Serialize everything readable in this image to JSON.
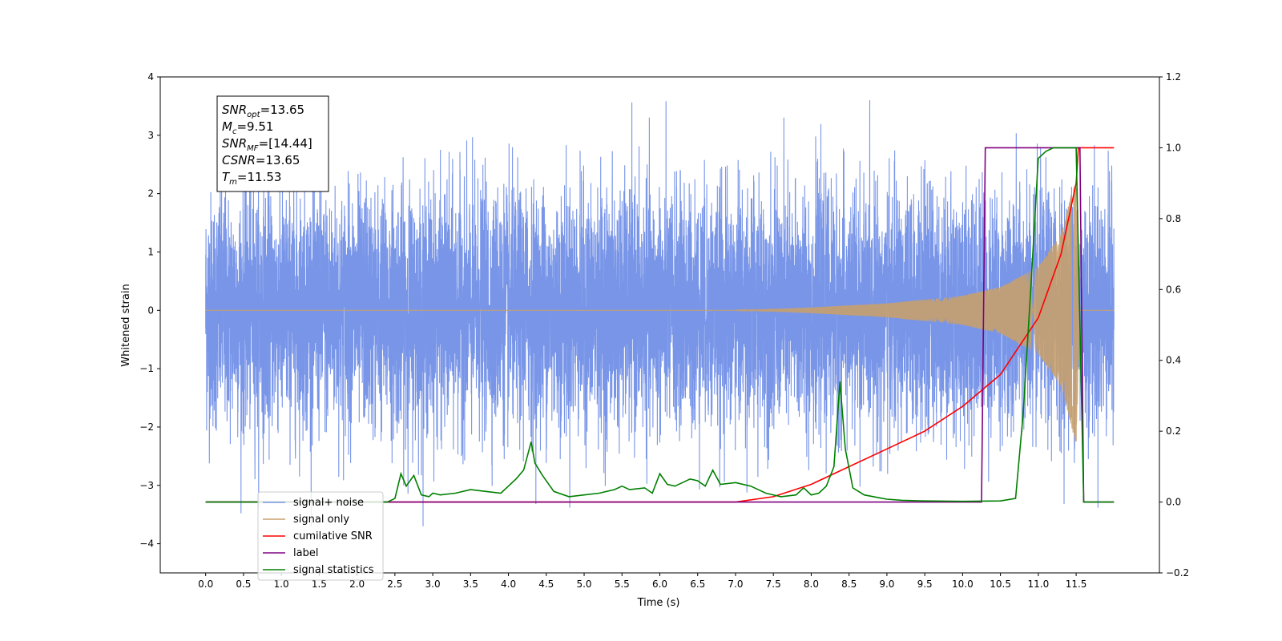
{
  "chart_data": {
    "type": "line",
    "xlabel": "Time (s)",
    "ylabel": "Whitened strain",
    "xlim": [
      -0.6,
      12.6
    ],
    "ylim_left": [
      -4.5,
      4
    ],
    "ylim_right": [
      -0.2,
      1.2
    ],
    "x_ticks": [
      "0.0",
      "0.5",
      "1.0",
      "1.5",
      "2.0",
      "2.5",
      "3.0",
      "3.5",
      "4.0",
      "4.5",
      "5.0",
      "5.5",
      "6.0",
      "6.5",
      "7.0",
      "7.5",
      "8.0",
      "8.5",
      "9.0",
      "9.5",
      "10.0",
      "10.5",
      "11.0",
      "11.5"
    ],
    "y_ticks_left": [
      "−4",
      "−3",
      "−2",
      "−1",
      "0",
      "1",
      "2",
      "3",
      "4"
    ],
    "y_ticks_right": [
      "−0.2",
      "0.0",
      "0.2",
      "0.4",
      "0.6",
      "0.8",
      "1.0",
      "1.2"
    ],
    "grid": false,
    "legend_position": "bottom-left",
    "annotation": {
      "lines": [
        {
          "base": "SNR",
          "sub": "opt",
          "value": "=13.65"
        },
        {
          "base": "M",
          "sub": "c",
          "value": "=9.51"
        },
        {
          "base": "SNR",
          "sub": "MF",
          "value": "=[14.44]"
        },
        {
          "base": "CSNR",
          "sub": "",
          "value": "=13.65"
        },
        {
          "base": "T",
          "sub": "m",
          "value": "=11.53"
        }
      ]
    },
    "colors": {
      "signal_noise": "#7895e8",
      "signal_only": "#c7a06e",
      "cumulative_snr": "#ff0000",
      "label": "#800080",
      "signal_statistics": "#008000"
    },
    "series": [
      {
        "name": "signal+ noise",
        "axis": "left",
        "x_range": [
          0.0,
          12.0
        ],
        "amplitude_sigma": 1.0,
        "peak_max": 3.6,
        "peak_min": -3.7
      },
      {
        "name": "signal only",
        "axis": "left",
        "x_range": [
          0.0,
          12.0
        ],
        "envelope": [
          [
            7.0,
            0.0
          ],
          [
            8.0,
            0.05
          ],
          [
            9.0,
            0.12
          ],
          [
            10.0,
            0.25
          ],
          [
            10.5,
            0.4
          ],
          [
            11.0,
            0.75
          ],
          [
            11.3,
            1.3
          ],
          [
            11.5,
            2.3
          ],
          [
            11.55,
            0.0
          ]
        ]
      },
      {
        "name": "cumilative SNR",
        "axis": "right",
        "x": [
          0.0,
          7.0,
          7.5,
          8.0,
          8.5,
          9.0,
          9.5,
          10.0,
          10.5,
          11.0,
          11.3,
          11.5,
          11.53,
          12.0
        ],
        "y": [
          0.0,
          0.0,
          0.015,
          0.05,
          0.1,
          0.15,
          0.2,
          0.27,
          0.36,
          0.52,
          0.7,
          0.9,
          1.0,
          1.0
        ]
      },
      {
        "name": "label",
        "axis": "right",
        "x": [
          0.0,
          10.25,
          10.3,
          11.55,
          11.6,
          12.0
        ],
        "y": [
          0.0,
          0.0,
          1.0,
          1.0,
          0.0,
          0.0
        ]
      },
      {
        "name": "signal statistics",
        "axis": "right",
        "x": [
          0.0,
          2.4,
          2.5,
          2.58,
          2.65,
          2.75,
          2.85,
          2.95,
          3.0,
          3.1,
          3.3,
          3.5,
          3.7,
          3.9,
          4.1,
          4.2,
          4.3,
          4.35,
          4.45,
          4.6,
          4.8,
          5.0,
          5.2,
          5.4,
          5.5,
          5.6,
          5.8,
          5.9,
          6.0,
          6.1,
          6.2,
          6.3,
          6.4,
          6.5,
          6.6,
          6.7,
          6.8,
          7.0,
          7.2,
          7.4,
          7.6,
          7.8,
          7.9,
          8.0,
          8.1,
          8.2,
          8.3,
          8.38,
          8.45,
          8.55,
          8.7,
          8.9,
          9.0,
          9.2,
          9.5,
          10.0,
          10.5,
          10.7,
          10.8,
          10.9,
          11.0,
          11.1,
          11.2,
          11.5,
          11.55,
          11.6,
          12.0
        ],
        "y": [
          0.0,
          0.0,
          0.01,
          0.08,
          0.045,
          0.075,
          0.02,
          0.015,
          0.025,
          0.02,
          0.025,
          0.035,
          0.03,
          0.025,
          0.065,
          0.09,
          0.17,
          0.11,
          0.075,
          0.03,
          0.015,
          0.02,
          0.025,
          0.035,
          0.045,
          0.035,
          0.04,
          0.025,
          0.08,
          0.05,
          0.045,
          0.055,
          0.065,
          0.06,
          0.045,
          0.09,
          0.05,
          0.055,
          0.045,
          0.025,
          0.015,
          0.02,
          0.04,
          0.02,
          0.025,
          0.045,
          0.1,
          0.34,
          0.15,
          0.04,
          0.02,
          0.012,
          0.008,
          0.005,
          0.003,
          0.002,
          0.003,
          0.01,
          0.25,
          0.6,
          0.97,
          0.99,
          1.0,
          1.0,
          0.5,
          0.0,
          0.0
        ]
      }
    ]
  }
}
